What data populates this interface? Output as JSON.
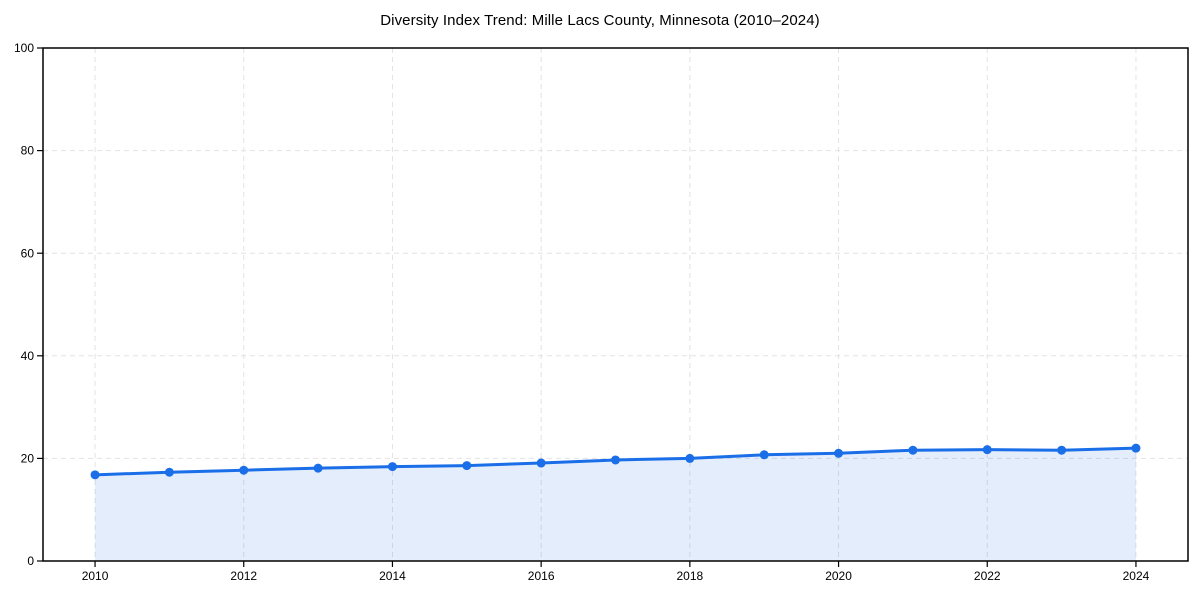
{
  "chart_data": {
    "type": "area",
    "title": "Diversity Index Trend: Mille Lacs County, Minnesota (2010–2024)",
    "xlabel": "",
    "ylabel": "",
    "x": [
      2010,
      2011,
      2012,
      2013,
      2014,
      2015,
      2016,
      2017,
      2018,
      2019,
      2020,
      2021,
      2022,
      2023,
      2024
    ],
    "series": [
      {
        "name": "Diversity Index",
        "values": [
          16.8,
          17.3,
          17.7,
          18.1,
          18.4,
          18.6,
          19.1,
          19.7,
          20.0,
          20.7,
          21.0,
          21.6,
          21.7,
          21.6,
          22.0
        ]
      }
    ],
    "ylim": [
      0,
      100
    ],
    "xticks": [
      "2010",
      "2012",
      "2014",
      "2016",
      "2018",
      "2020",
      "2022",
      "2024"
    ],
    "yticks": [
      "0",
      "20",
      "40",
      "60",
      "80",
      "100"
    ],
    "grid": "dashed",
    "legend": "none",
    "line_color": "#1a6ee8",
    "marker_color": "#1a6ee8",
    "fill_color": "rgba(26, 110, 232, 0.12)",
    "grid_color": "#e2e2e2",
    "spine_color": "#000000",
    "background_color": "#ffffff"
  }
}
